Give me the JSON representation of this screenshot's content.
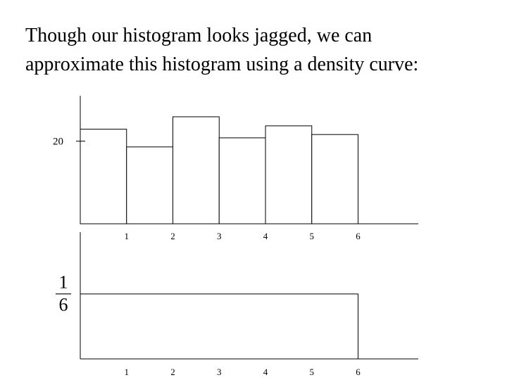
{
  "title": {
    "line1": "Though our histogram looks jagged, we can",
    "line2": "approximate this histogram using a density curve:"
  },
  "chart_data": [
    {
      "type": "bar",
      "bin_edges": [
        0,
        1,
        2,
        3,
        4,
        5,
        6
      ],
      "values": [
        22.9,
        18.6,
        25.9,
        20.8,
        23.7,
        21.6
      ],
      "x_tick_labels": [
        "1",
        "2",
        "3",
        "4",
        "5",
        "6"
      ],
      "x_tick_values": [
        1,
        2,
        3,
        4,
        5,
        6
      ],
      "y_tick_labels": [
        "20"
      ],
      "y_tick_values": [
        20
      ],
      "xlim": [
        0,
        7.3
      ],
      "ylim": [
        0,
        31
      ],
      "grid": false
    },
    {
      "type": "area",
      "x": [
        0,
        6
      ],
      "y": [
        0.16667,
        0.16667
      ],
      "x_tick_labels": [
        "1",
        "2",
        "3",
        "4",
        "5",
        "6"
      ],
      "x_tick_values": [
        1,
        2,
        3,
        4,
        5,
        6
      ],
      "y_tick_label_numerator": "1",
      "y_tick_label_denominator": "6",
      "y_tick_value": 0.16667,
      "xlim": [
        0,
        7.3
      ],
      "ylim": [
        0,
        0.325
      ],
      "grid": false
    }
  ]
}
